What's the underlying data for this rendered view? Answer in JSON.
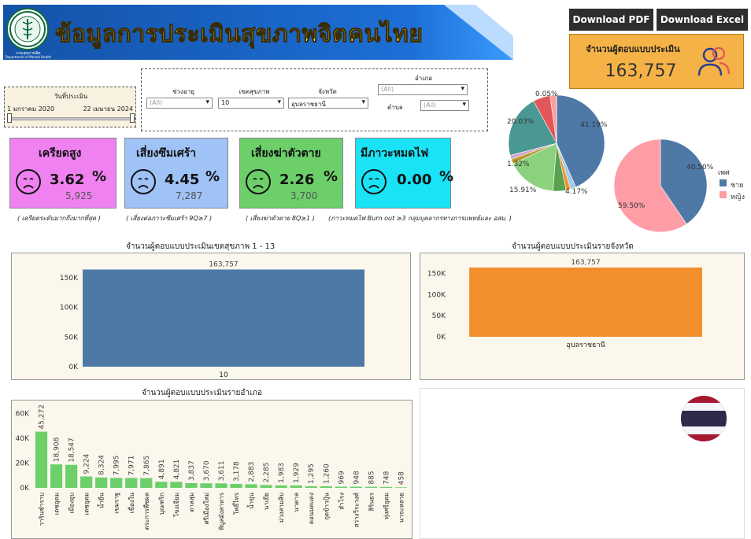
{
  "header": {
    "title": "ข้อมูลการประเมินสุขภาพจิตคนไทย",
    "logo_caption": "กรมสุขภาพจิต",
    "logo_caption_en": "Department of Mental Health",
    "download_pdf": "Download PDF",
    "download_excel": "Download Excel"
  },
  "respondents": {
    "title": "จำนวนผู้ตอบแบบประเมิน",
    "value": "163,757"
  },
  "date_filter": {
    "label": "วันที่ประเมิน",
    "start": "1 มกราคม 2020",
    "end": "22 เมษายน 2024"
  },
  "filters": {
    "age_label": "ช่วงอายุ",
    "age_value": "(All)",
    "region_label": "เขตสุขภาพ",
    "region_value": "10",
    "province_label": "จังหวัด",
    "province_value": "อุบลราชธานี",
    "district_label": "อำเภอ",
    "district_value": "(All)",
    "subdistrict_label": "ตำบล",
    "subdistrict_value": "(All)"
  },
  "kpis": [
    {
      "title": "เครียดสูง",
      "pct": "3.62",
      "count": "5,925",
      "color": "#f081f0",
      "note": "( เครียดระดับมากถึงมากที่สุด )"
    },
    {
      "title": "เสี่ยงซึมเศร้า",
      "pct": "4.45",
      "count": "7,287",
      "color": "#9fc2f7",
      "note": "( เสี่ยงต่อภาวะซึมเศร้า 9Q≥7 )"
    },
    {
      "title": "เสี่ยงฆ่าตัวตาย",
      "pct": "2.26",
      "count": "3,700",
      "color": "#6ccf6a",
      "note": "( เสี่ยงฆ่าตัวตาย 8Q≥1 )"
    },
    {
      "title": "มีภาวะหมดไฟ",
      "pct": "0.00",
      "count": "",
      "color": "#19e3f5",
      "note": "(ภาวะหมดไฟ Burn out ≥3  กลุ่มบุคลากรทางการแพทย์และ อสม. )"
    }
  ],
  "pct_sign": "%",
  "pie_age": {
    "labels": [
      "0.05%",
      "41.19%",
      "4.17%",
      "15.91%",
      "1.32%",
      "20.03%"
    ]
  },
  "pie_gender": {
    "legend_title": "เพศ",
    "male_label": "ชาย",
    "female_label": "หญิง",
    "male_pct_label": "40.50%",
    "female_pct_label": "59.50%",
    "male_color": "#4e79a7",
    "female_color": "#ff9da7"
  },
  "chart_data": [
    {
      "type": "pie",
      "title": "",
      "slices": [
        {
          "value": 41.19,
          "color": "#4e79a7"
        },
        {
          "value": 1.8,
          "color": "#a0cbe8"
        },
        {
          "value": 1.4,
          "color": "#f28e2b"
        },
        {
          "value": 4.17,
          "color": "#59a14f"
        },
        {
          "value": 15.91,
          "color": "#8cd17d"
        },
        {
          "value": 1.5,
          "color": "#b6992d"
        },
        {
          "value": 1.32,
          "color": "#d4a6c8"
        },
        {
          "value": 20.03,
          "color": "#499894"
        },
        {
          "value": 5.5,
          "color": "#e15759"
        },
        {
          "value": 2.0,
          "color": "#ff9d9a"
        },
        {
          "value": 0.05,
          "color": "#bab0ac"
        }
      ]
    },
    {
      "type": "pie",
      "title": "",
      "legend_title": "เพศ",
      "legend_position": "right",
      "slices": [
        {
          "name": "ชาย",
          "value": 40.5,
          "color": "#4e79a7"
        },
        {
          "name": "หญิง",
          "value": 59.5,
          "color": "#ff9da7"
        }
      ]
    },
    {
      "type": "bar",
      "title": "จำนวนผู้ตอบแบบประเมินเขตสุขภาพ 1 - 13",
      "categories": [
        "10"
      ],
      "values": [
        163757
      ],
      "value_labels": [
        "163,757"
      ],
      "y_ticks": [
        "0K",
        "50K",
        "100K",
        "150K"
      ],
      "ylim": [
        0,
        175000
      ],
      "color": "#4e79a7"
    },
    {
      "type": "bar",
      "title": "จำนวนผู้ตอบแบบประเมินรายจังหวัด",
      "categories": [
        "อุบลราชธานี"
      ],
      "values": [
        163757
      ],
      "value_labels": [
        "163,757"
      ],
      "y_ticks": [
        "0K",
        "50K",
        "100K",
        "150K"
      ],
      "ylim": [
        0,
        175000
      ],
      "color": "#f28e2b"
    },
    {
      "type": "bar",
      "title": "จำนวนผู้ตอบแบบประเมินรายอำเภอ",
      "categories": [
        "วารินชำราบ",
        "เดชอุดม",
        "เมืองอุบ",
        "เดชอุดม",
        "น้ำยืน",
        "เขมราฐ",
        "เขื่องใน",
        "ตระการพืชผล",
        "บุณฑริก",
        "โขงเจียม",
        "ตาลสุม",
        "ศรีเมืองใหม่",
        "พิบูลมังสาหาร",
        "โพธิ์ไทร",
        "น้ำขุ่น",
        "นาเยีย",
        "ม่วงสามสิบ",
        "นาตาล",
        "ดอนมดแดง",
        "กุดข้าวปุ้น",
        "สำโรง",
        "สว่างวีระวงศ์",
        "สิรินธร",
        "ทุ่งศรีอุดม",
        "นาจะหลวย"
      ],
      "values": [
        45272,
        18908,
        18547,
        9224,
        8324,
        7995,
        7971,
        7865,
        4891,
        4821,
        3837,
        3670,
        3611,
        3178,
        2883,
        2285,
        1983,
        1929,
        1295,
        1260,
        969,
        948,
        885,
        748,
        458
      ],
      "value_labels": [
        "45,272",
        "18,908",
        "18,547",
        "9,224",
        "8,324",
        "7,995",
        "7,971",
        "7,865",
        "4,891",
        "4,821",
        "3,837",
        "3,670",
        "3,611",
        "3,178",
        "2,883",
        "2,285",
        "1,983",
        "1,929",
        "1,295",
        "1,260",
        "969",
        "948",
        "885",
        "748",
        "458"
      ],
      "y_ticks": [
        "0K",
        "20K",
        "40K",
        "60K"
      ],
      "ylim": [
        0,
        64000
      ],
      "color": "#6ccf6a"
    }
  ]
}
